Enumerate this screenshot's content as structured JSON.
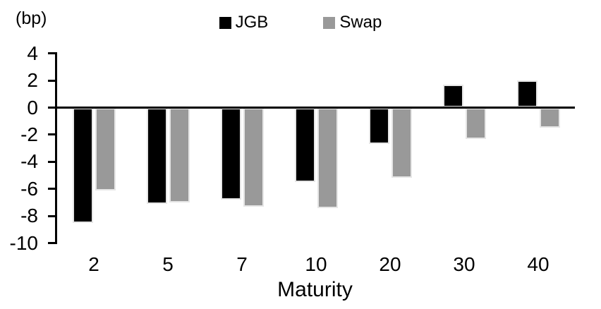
{
  "chart_data": {
    "type": "bar",
    "title": "",
    "unit_label": "(bp)",
    "xlabel": "Maturity",
    "ylabel": "",
    "categories": [
      "2",
      "5",
      "7",
      "10",
      "20",
      "30",
      "40"
    ],
    "series": [
      {
        "name": "JGB",
        "color": "#000000",
        "values": [
          -8.5,
          -7.1,
          -6.8,
          -5.5,
          -2.7,
          1.7,
          2.0
        ]
      },
      {
        "name": "Swap",
        "color": "#999999",
        "values": [
          -6.1,
          -7.0,
          -7.3,
          -7.4,
          -5.2,
          -2.3,
          -1.5
        ]
      }
    ],
    "y_ticks": [
      4,
      2,
      0,
      -2,
      -4,
      -6,
      -8,
      -10
    ],
    "ylim": [
      -10,
      4
    ],
    "legend_position": "top-center",
    "grid": false,
    "axis_color": "#000000",
    "background_color": "#ffffff"
  }
}
